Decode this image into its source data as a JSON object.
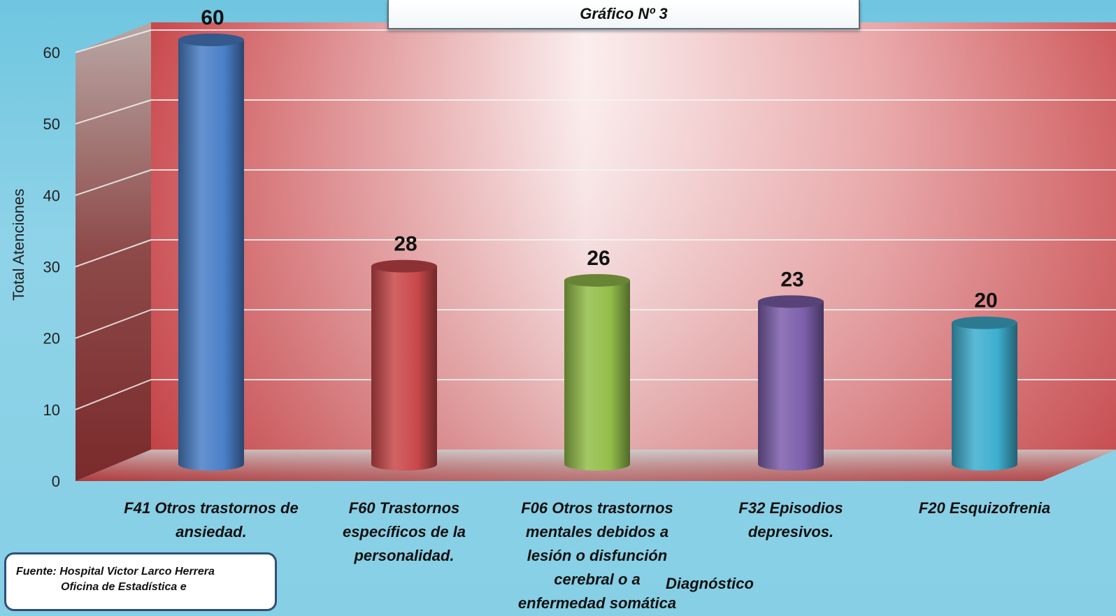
{
  "chart_data": {
    "type": "bar",
    "title": "Gráfico Nº 3",
    "ylabel": "Total Atenciones",
    "xlabel": "Diagnóstico",
    "ylim": [
      0,
      60
    ],
    "yticks": [
      0,
      10,
      20,
      30,
      40,
      50,
      60
    ],
    "grid": true,
    "categories": [
      "F41 Otros trastornos de ansiedad.",
      "F60 Trastornos específicos de la personalidad.",
      "F06 Otros trastornos mentales debidos a lesión o disfunción cerebral o a enfermedad somática",
      "F32 Episodios depresivos.",
      "F20 Esquizofrenia"
    ],
    "values": [
      60,
      28,
      26,
      23,
      20
    ],
    "colors": [
      "#4a7fc8",
      "#c9484a",
      "#93be4a",
      "#7c5fab",
      "#3eaecf"
    ]
  },
  "source": {
    "line1": "Fuente:  Hospital Victor Larco Herrera",
    "line2": "Oficina de Estadística e"
  }
}
